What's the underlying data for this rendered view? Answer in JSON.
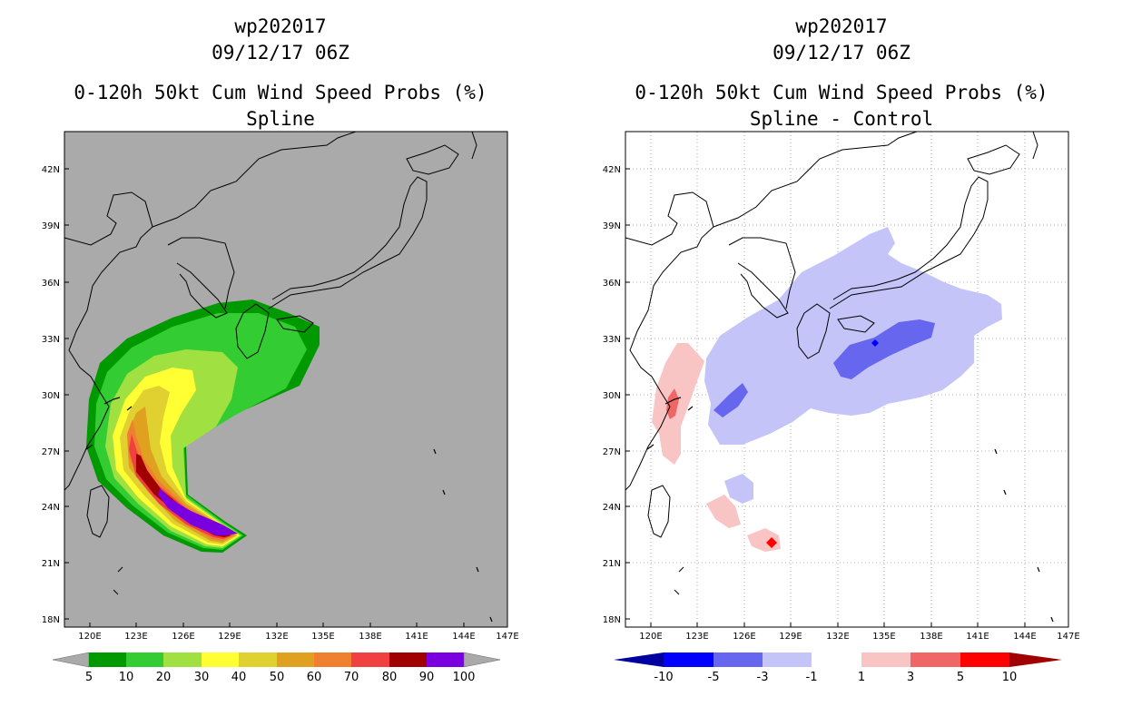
{
  "panels": [
    {
      "title_storm": "wp202017",
      "title_time": "09/12/17 06Z",
      "title_product": "0-120h 50kt Cum Wind Speed Probs (%)",
      "title_variant": "Spline",
      "background_color": "#aaaaaa",
      "colorbar_labels": [
        "5",
        "10",
        "20",
        "30",
        "40",
        "50",
        "60",
        "70",
        "80",
        "90",
        "100"
      ],
      "colorbar_colors": [
        "#009900",
        "#33cc33",
        "#a0e040",
        "#ffff33",
        "#e0d030",
        "#e0a020",
        "#f08030",
        "#f04040",
        "#a00000",
        "#7a00e0"
      ]
    },
    {
      "title_storm": "wp202017",
      "title_time": "09/12/17 06Z",
      "title_product": "0-120h 50kt Cum Wind Speed Probs (%)",
      "title_variant": "Spline - Control",
      "background_color": "#ffffff",
      "colorbar_labels": [
        "-10",
        "-5",
        "-3",
        "-1",
        "1",
        "3",
        "5",
        "10"
      ],
      "colorbar_colors": [
        "#0000a0",
        "#0000ff",
        "#6666ee",
        "#c4c4f8",
        "#ffffff",
        "#f8c4c4",
        "#f06666",
        "#ff0000",
        "#a00000"
      ]
    }
  ],
  "axes": {
    "lat_labels": [
      "42N",
      "39N",
      "36N",
      "33N",
      "30N",
      "27N",
      "24N",
      "21N",
      "18N"
    ],
    "lon_labels": [
      "120E",
      "123E",
      "126E",
      "129E",
      "132E",
      "135E",
      "138E",
      "141E",
      "144E",
      "147E"
    ]
  }
}
